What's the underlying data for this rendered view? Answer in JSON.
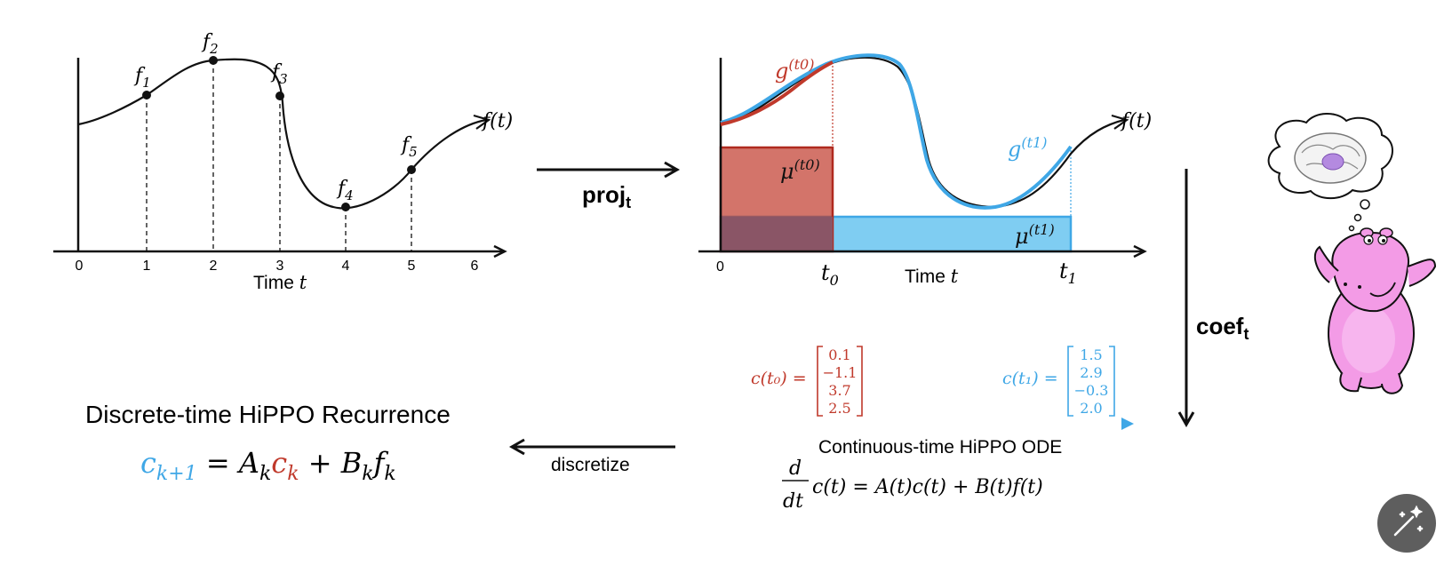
{
  "colors": {
    "red": "#c0392b",
    "blue": "#3fa7e6",
    "black": "#111111",
    "hippo": "#f39be6"
  },
  "left_plot": {
    "func_label": "f(t)",
    "xlabel": "Time",
    "xlabel_var": "t",
    "ticks": [
      "0",
      "1",
      "2",
      "3",
      "4",
      "5",
      "6"
    ],
    "points": [
      {
        "label": "f",
        "sub": "1"
      },
      {
        "label": "f",
        "sub": "2"
      },
      {
        "label": "f",
        "sub": "3"
      },
      {
        "label": "f",
        "sub": "4"
      },
      {
        "label": "f",
        "sub": "5"
      }
    ]
  },
  "proj_arrow": {
    "label": "proj",
    "sub": "t"
  },
  "right_plot": {
    "func_label": "f(t)",
    "g0_label": "g",
    "g0_sup": "(t0)",
    "g1_label": "g",
    "g1_sup": "(t1)",
    "mu0_label": "μ",
    "mu0_sup": "(t0)",
    "mu1_label": "μ",
    "mu1_sup": "(t1)",
    "tick0": "0",
    "t0": "t",
    "t0_sub": "0",
    "t1": "t",
    "t1_sub": "1",
    "xlabel": "Time",
    "xlabel_var": "t"
  },
  "coef_arrow": {
    "label": "coef",
    "sub": "t"
  },
  "ode": {
    "c0_lhs": "c(t₀) =",
    "c0_vec": [
      "0.1",
      "−1.1",
      "3.7",
      "2.5"
    ],
    "c1_lhs": "c(t₁) =",
    "c1_vec": [
      "1.5",
      "2.9",
      "−0.3",
      "2.0"
    ],
    "title": "Continuous-time HiPPO ODE",
    "equation_rhs": "c(t) = A(t)c(t) + B(t)f(t)",
    "deriv_num": "d",
    "deriv_den": "dt"
  },
  "discretize": {
    "label": "discretize"
  },
  "recurrence": {
    "title": "Discrete-time HiPPO Recurrence",
    "lhs": "c",
    "lhs_sub": "k+1",
    "eq": "=",
    "a": "A",
    "a_sub": "k",
    "c": "c",
    "c_sub": "k",
    "plus": "+",
    "b": "B",
    "b_sub": "k",
    "f": "f",
    "f_sub": "k"
  },
  "edit_button": {
    "icon": "magic-wand-icon"
  }
}
